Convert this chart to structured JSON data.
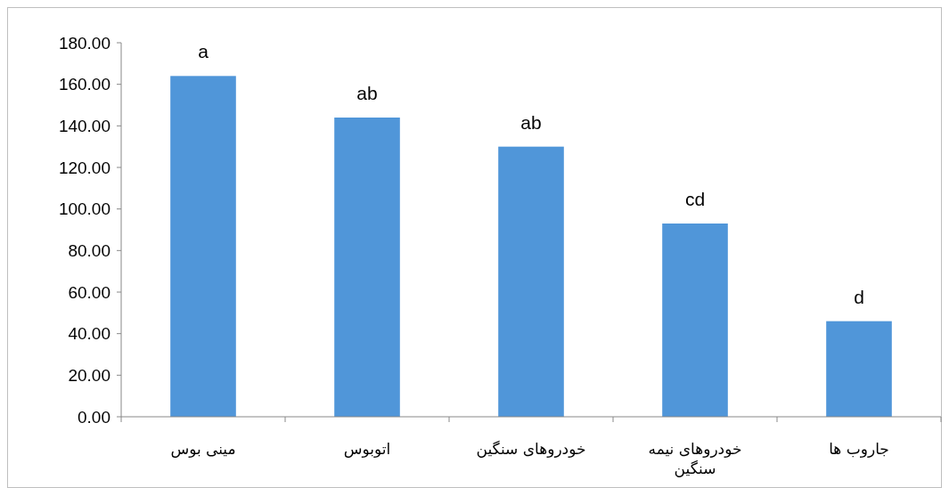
{
  "chart_data": {
    "type": "bar",
    "categories": [
      "مینی بوس",
      "اتوبوس",
      "خودروهای سنگین",
      "خودروهای نیمه سنگین",
      "جاروب ها"
    ],
    "values": [
      164,
      144,
      130,
      93,
      46
    ],
    "color": "#5096d9",
    "ylim": [
      0,
      180
    ],
    "yticks": [
      {
        "value": 0,
        "label": "0.00"
      },
      {
        "value": 20,
        "label": "20.00"
      },
      {
        "value": 40,
        "label": "40.00"
      },
      {
        "value": 60,
        "label": "60.00"
      },
      {
        "value": 80,
        "label": "80.00"
      },
      {
        "value": 100,
        "label": "100.00"
      },
      {
        "value": 120,
        "label": "120.00"
      },
      {
        "value": 140,
        "label": "140.00"
      },
      {
        "value": 160,
        "label": "160.00"
      },
      {
        "value": 180,
        "label": "180.00"
      }
    ],
    "grid": false,
    "annotations": [
      {
        "text": "a",
        "x": "مینی بوس",
        "y": 164
      },
      {
        "text": "ab",
        "x": "اتوبوس",
        "y": 144
      },
      {
        "text": "ab",
        "x": "خودروهای سنگین",
        "y": 130
      },
      {
        "text": "cd",
        "x": "خودروهای نیمه سنگین",
        "y": 93
      },
      {
        "text": "d",
        "x": "جاروب ها",
        "y": 46
      }
    ]
  }
}
